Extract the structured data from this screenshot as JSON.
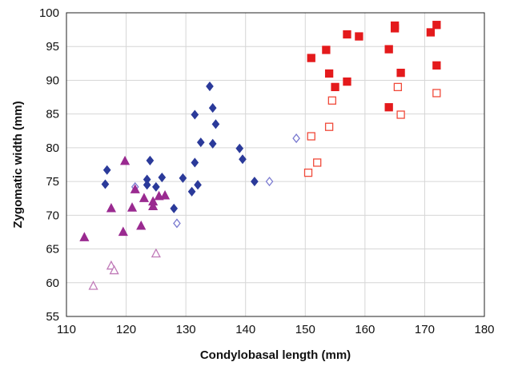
{
  "chart_data": {
    "type": "scatter",
    "title": "",
    "xlabel": "Condylobasal length (mm)",
    "ylabel": "Zygomatic width (mm)",
    "xlim": [
      110,
      180
    ],
    "ylim": [
      55,
      100
    ],
    "x_ticks": [
      110,
      120,
      130,
      140,
      150,
      160,
      170,
      180
    ],
    "y_ticks": [
      55,
      60,
      65,
      70,
      75,
      80,
      85,
      90,
      95,
      100
    ],
    "grid": true,
    "legend": "none",
    "series": [
      {
        "marker": "diamond",
        "filled": true,
        "color": "#2b3a9a",
        "points": [
          [
            116.5,
            74.6
          ],
          [
            116.8,
            76.7
          ],
          [
            123.5,
            74.5
          ],
          [
            123.5,
            75.3
          ],
          [
            124.0,
            78.1
          ],
          [
            125.0,
            74.2
          ],
          [
            126.0,
            75.6
          ],
          [
            128.0,
            71.0
          ],
          [
            129.5,
            75.5
          ],
          [
            131.0,
            73.5
          ],
          [
            131.5,
            77.8
          ],
          [
            131.5,
            84.9
          ],
          [
            132.0,
            74.5
          ],
          [
            132.5,
            80.8
          ],
          [
            134.0,
            89.1
          ],
          [
            134.5,
            80.6
          ],
          [
            134.5,
            85.9
          ],
          [
            135.0,
            83.5
          ],
          [
            139.0,
            79.9
          ],
          [
            139.5,
            78.3
          ],
          [
            141.5,
            75.0
          ]
        ]
      },
      {
        "marker": "diamond",
        "filled": false,
        "color": "#7a7ad0",
        "points": [
          [
            121.5,
            74.2
          ],
          [
            128.5,
            68.8
          ],
          [
            144.0,
            75.0
          ],
          [
            148.5,
            81.4
          ]
        ]
      },
      {
        "marker": "triangle",
        "filled": true,
        "color": "#9a2a90",
        "points": [
          [
            113.0,
            66.7
          ],
          [
            117.5,
            71.0
          ],
          [
            119.5,
            67.5
          ],
          [
            119.8,
            78.0
          ],
          [
            121.0,
            71.1
          ],
          [
            121.5,
            73.8
          ],
          [
            122.5,
            68.4
          ],
          [
            123.0,
            72.5
          ],
          [
            124.5,
            72.0
          ],
          [
            124.5,
            71.3
          ],
          [
            125.5,
            72.8
          ],
          [
            126.5,
            72.9
          ]
        ]
      },
      {
        "marker": "triangle",
        "filled": false,
        "color": "#c07ab8",
        "points": [
          [
            114.5,
            59.5
          ],
          [
            117.5,
            62.5
          ],
          [
            118.0,
            61.8
          ],
          [
            125.0,
            64.3
          ]
        ]
      },
      {
        "marker": "square",
        "filled": true,
        "color": "#e41a1c",
        "points": [
          [
            151.0,
            93.3
          ],
          [
            153.5,
            94.5
          ],
          [
            154.0,
            91.0
          ],
          [
            155.0,
            89.0
          ],
          [
            157.0,
            89.8
          ],
          [
            157.0,
            96.8
          ],
          [
            159.0,
            96.5
          ],
          [
            164.0,
            86.0
          ],
          [
            164.0,
            94.6
          ],
          [
            165.0,
            98.1
          ],
          [
            165.0,
            97.7
          ],
          [
            166.0,
            91.1
          ],
          [
            171.0,
            97.1
          ],
          [
            172.0,
            98.2
          ],
          [
            172.0,
            92.2
          ]
        ]
      },
      {
        "marker": "square",
        "filled": false,
        "color": "#f04a3a",
        "points": [
          [
            150.5,
            76.3
          ],
          [
            151.0,
            81.7
          ],
          [
            152.0,
            77.8
          ],
          [
            154.0,
            83.1
          ],
          [
            154.5,
            87.0
          ],
          [
            165.5,
            89.0
          ],
          [
            166.0,
            84.9
          ],
          [
            172.0,
            88.1
          ]
        ]
      }
    ]
  }
}
